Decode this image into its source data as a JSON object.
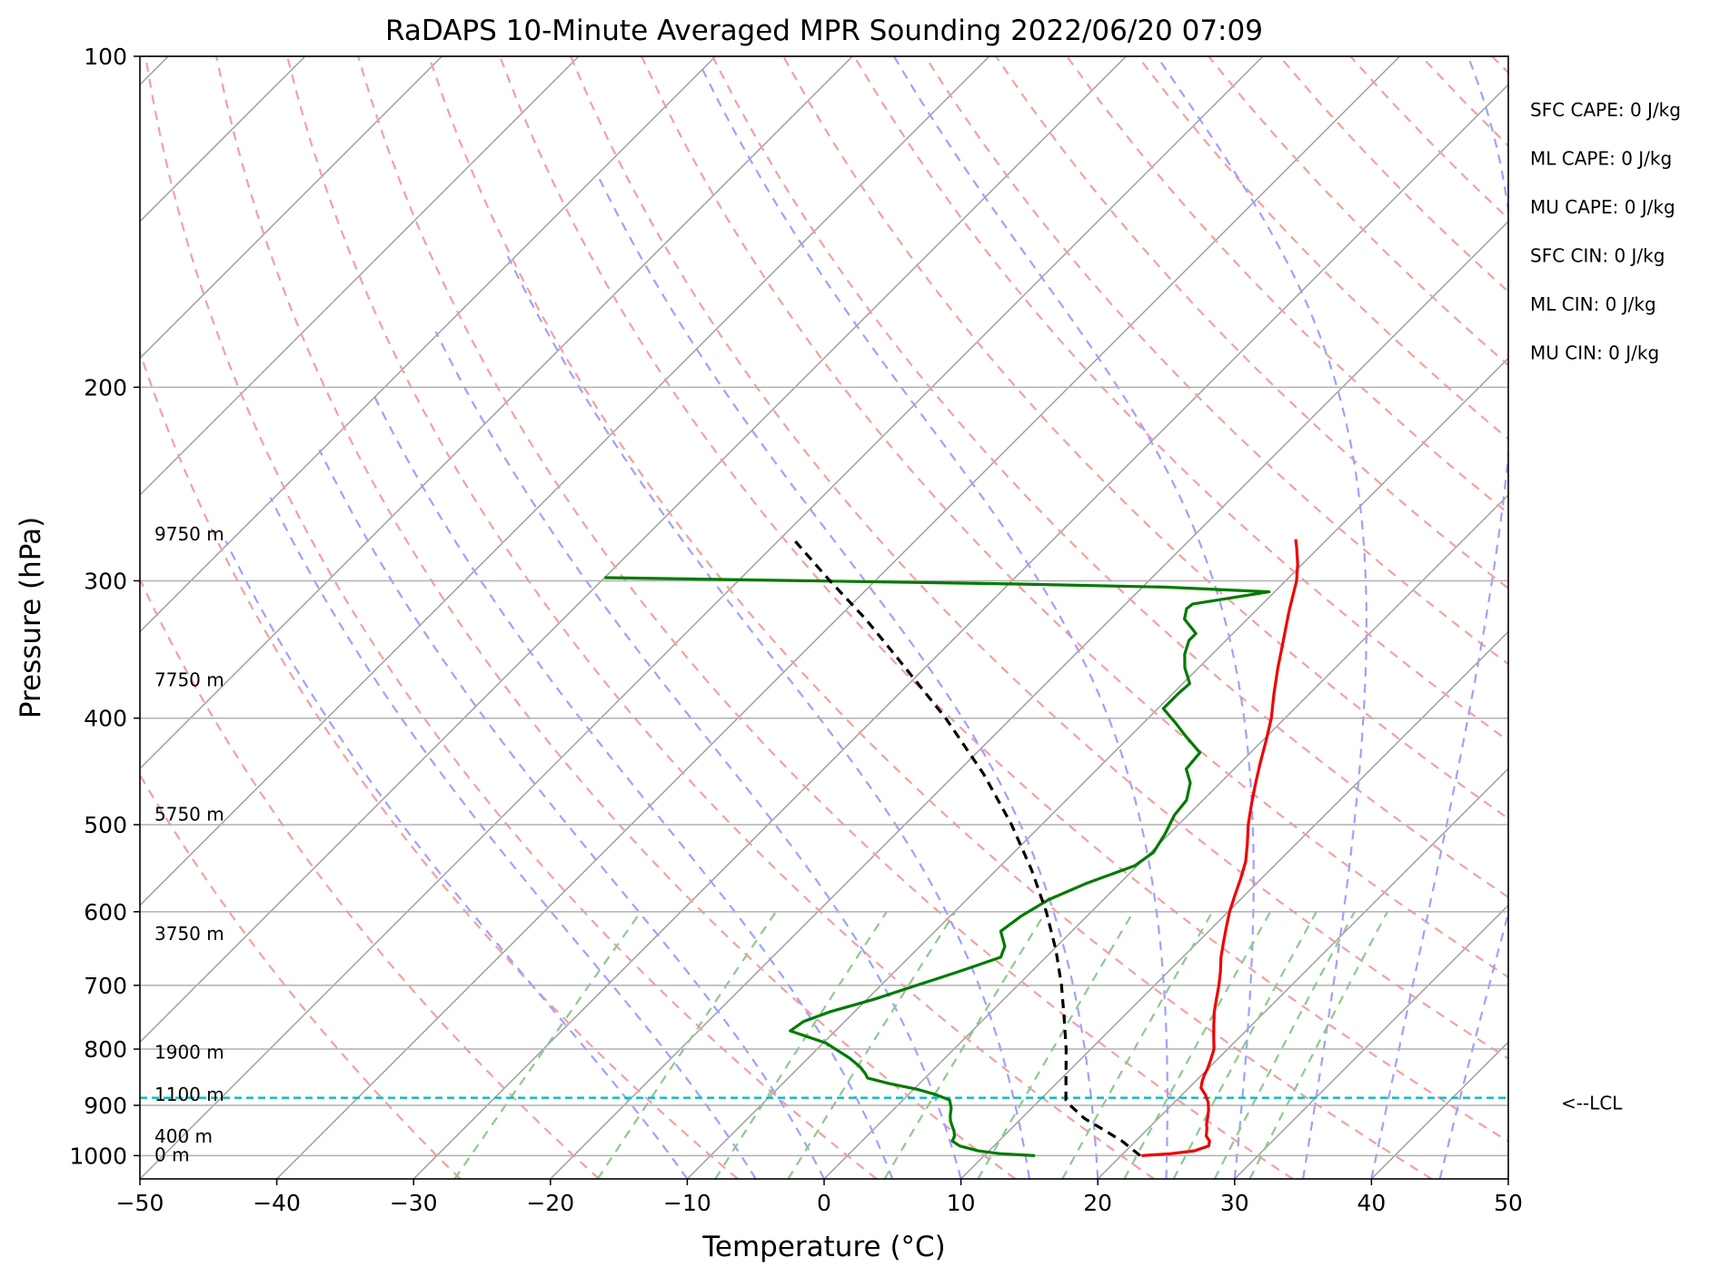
{
  "chart_data": {
    "type": "line",
    "subtype": "skew-T log-p sounding",
    "title": "RaDAPS 10-Minute Averaged MPR Sounding 2022/06/20 07:09",
    "xlabel": "Temperature (°C)",
    "ylabel": "Pressure (hPa)",
    "xlim": [
      -50,
      50
    ],
    "ylim": [
      1050,
      100
    ],
    "y_scale": "log",
    "x_ticks": [
      "−50",
      "−40",
      "−30",
      "−20",
      "−10",
      "0",
      "10",
      "20",
      "30",
      "40",
      "50"
    ],
    "x_tick_values": [
      -50,
      -40,
      -30,
      -20,
      -10,
      0,
      10,
      20,
      30,
      40,
      50
    ],
    "y_ticks": [
      100,
      200,
      300,
      400,
      500,
      600,
      700,
      800,
      900,
      1000
    ],
    "grid": true,
    "colors": {
      "temperature": "#ee0000",
      "dewpoint": "#007a00",
      "parcel": "#000000",
      "lcl": "#00bfbf",
      "dry_adiabat": "#f4a0a0",
      "moist_adiabat": "#a0a0ff",
      "mixing_ratio": "#8fc88f",
      "isotherm": "#a0a0a0"
    },
    "series": [
      {
        "key": "temperature",
        "points": [
          [
            1000,
            21.5
          ],
          [
            996,
            23.5
          ],
          [
            990,
            25.0
          ],
          [
            980,
            25.7
          ],
          [
            970,
            25.4
          ],
          [
            960,
            24.8
          ],
          [
            945,
            24.3
          ],
          [
            935,
            23.9
          ],
          [
            925,
            23.6
          ],
          [
            910,
            23.1
          ],
          [
            895,
            22.5
          ],
          [
            880,
            21.7
          ],
          [
            868,
            20.9
          ],
          [
            856,
            20.5
          ],
          [
            845,
            20.2
          ],
          [
            835,
            20.0
          ],
          [
            820,
            19.6
          ],
          [
            800,
            19.0
          ],
          [
            780,
            18.1
          ],
          [
            760,
            17.2
          ],
          [
            740,
            16.3
          ],
          [
            720,
            15.5
          ],
          [
            700,
            14.7
          ],
          [
            680,
            13.8
          ],
          [
            660,
            12.8
          ],
          [
            640,
            11.9
          ],
          [
            620,
            11.0
          ],
          [
            600,
            10.1
          ],
          [
            580,
            9.3
          ],
          [
            560,
            8.5
          ],
          [
            540,
            7.6
          ],
          [
            520,
            6.4
          ],
          [
            500,
            5.1
          ],
          [
            480,
            3.9
          ],
          [
            460,
            2.7
          ],
          [
            440,
            1.5
          ],
          [
            420,
            0.3
          ],
          [
            400,
            -1.0
          ],
          [
            380,
            -2.6
          ],
          [
            360,
            -4.2
          ],
          [
            340,
            -5.8
          ],
          [
            320,
            -7.5
          ],
          [
            300,
            -9.2
          ],
          [
            290,
            -10.3
          ],
          [
            280,
            -11.6
          ],
          [
            275,
            -12.3
          ]
        ]
      },
      {
        "key": "dewpoint",
        "points": [
          [
            1000,
            13.7
          ],
          [
            996,
            11.0
          ],
          [
            990,
            9.2
          ],
          [
            980,
            7.5
          ],
          [
            970,
            6.6
          ],
          [
            960,
            6.4
          ],
          [
            950,
            6.0
          ],
          [
            940,
            5.5
          ],
          [
            930,
            5.0
          ],
          [
            920,
            4.6
          ],
          [
            905,
            4.1
          ],
          [
            890,
            3.4
          ],
          [
            880,
            2.0
          ],
          [
            870,
            0.2
          ],
          [
            860,
            -2.2
          ],
          [
            850,
            -4.2
          ],
          [
            842,
            -4.7
          ],
          [
            830,
            -5.6
          ],
          [
            815,
            -7.0
          ],
          [
            790,
            -9.8
          ],
          [
            770,
            -13.3
          ],
          [
            755,
            -13.0
          ],
          [
            740,
            -11.8
          ],
          [
            720,
            -9.4
          ],
          [
            700,
            -7.4
          ],
          [
            680,
            -5.3
          ],
          [
            660,
            -3.3
          ],
          [
            645,
            -3.8
          ],
          [
            625,
            -5.2
          ],
          [
            605,
            -4.8
          ],
          [
            585,
            -4.0
          ],
          [
            565,
            -2.4
          ],
          [
            545,
            -0.2
          ],
          [
            530,
            0.2
          ],
          [
            510,
            -0.3
          ],
          [
            490,
            -1.0
          ],
          [
            475,
            -1.2
          ],
          [
            458,
            -2.2
          ],
          [
            445,
            -3.5
          ],
          [
            430,
            -3.7
          ],
          [
            415,
            -6.0
          ],
          [
            405,
            -7.5
          ],
          [
            392,
            -9.6
          ],
          [
            380,
            -9.6
          ],
          [
            372,
            -9.5
          ],
          [
            360,
            -11.0
          ],
          [
            350,
            -12.0
          ],
          [
            340,
            -12.7
          ],
          [
            335,
            -12.7
          ],
          [
            325,
            -14.6
          ],
          [
            318,
            -15.2
          ],
          [
            315,
            -15.1
          ],
          [
            307,
            -10.4
          ],
          [
            304,
            -18.4
          ],
          [
            302,
            -29.4
          ],
          [
            298,
            -60.0
          ]
        ]
      },
      {
        "key": "parcel",
        "points": [
          [
            1000,
            21.4
          ],
          [
            970,
            19.0
          ],
          [
            945,
            16.6
          ],
          [
            925,
            14.6
          ],
          [
            900,
            12.6
          ],
          [
            890,
            11.9
          ],
          [
            850,
            10.3
          ],
          [
            800,
            8.2
          ],
          [
            750,
            5.8
          ],
          [
            700,
            3.2
          ],
          [
            650,
            0.2
          ],
          [
            600,
            -3.3
          ],
          [
            550,
            -7.4
          ],
          [
            500,
            -12.2
          ],
          [
            450,
            -17.9
          ],
          [
            400,
            -24.8
          ],
          [
            350,
            -33.2
          ],
          [
            325,
            -37.9
          ],
          [
            300,
            -43.3
          ],
          [
            275,
            -49.0
          ]
        ]
      }
    ],
    "lcl_pressure": 886,
    "lcl_label": "<--LCL",
    "height_labels": [
      {
        "text": "9750 m",
        "p": 272
      },
      {
        "text": "7750 m",
        "p": 369
      },
      {
        "text": "5750 m",
        "p": 489
      },
      {
        "text": "3750 m",
        "p": 628
      },
      {
        "text": "1900 m",
        "p": 805
      },
      {
        "text": "1100 m",
        "p": 880
      },
      {
        "text": "400 m",
        "p": 960
      },
      {
        "text": "0 m",
        "p": 998
      }
    ],
    "indices": [
      "SFC CAPE: 0 J/kg",
      "ML CAPE: 0 J/kg",
      "MU CAPE: 0 J/kg",
      "SFC CIN: 0 J/kg",
      "ML CIN: 0 J/kg",
      "MU CIN: 0 J/kg"
    ]
  }
}
